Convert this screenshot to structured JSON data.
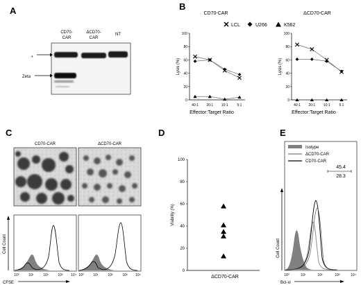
{
  "panels": {
    "A": {
      "letter": "A",
      "lanes": [
        "CD70-\nCAR",
        "ΔCD70-\nCAR",
        "NT"
      ],
      "lane_lines": [
        [
          "CD70-",
          "CAR"
        ],
        [
          "ΔCD70-",
          "CAR"
        ],
        [
          "NT"
        ]
      ],
      "star_label": "*",
      "zeta_label": "Zeta"
    },
    "B": {
      "letter": "B",
      "legend": [
        {
          "symbol": "x",
          "label": "LCL"
        },
        {
          "symbol": "diamond",
          "label": "U266"
        },
        {
          "symbol": "triangle",
          "label": "K562"
        }
      ]
    },
    "C": {
      "letter": "C",
      "image_titles": [
        "CD70-CAR",
        "ΔCD70-CAR"
      ],
      "ylabel": "Cell Count",
      "xlabel": "CFSE",
      "ticks": [
        "10⁰",
        "10¹",
        "10²",
        "10³",
        "10⁴"
      ]
    },
    "D": {
      "letter": "D"
    },
    "E": {
      "letter": "E",
      "legend": [
        "Isotype",
        "ΔCD70-CAR",
        "CD70-CAR"
      ],
      "mfi_values": [
        "45.4",
        "28.3"
      ],
      "ylabel": "Cell Count",
      "xlabel": "Bcl-xl",
      "ticks": [
        "10⁰",
        "10¹",
        "10²",
        "10³",
        "10⁴"
      ]
    }
  },
  "chart_data": [
    {
      "type": "line",
      "title": "CD70-CAR",
      "xlabel": "Effector:Target Ratio",
      "ylabel": "Lysis (%)",
      "categories": [
        "40:1",
        "20:1",
        "10:1",
        "5:1"
      ],
      "ylim": [
        0,
        100
      ],
      "yticks": [
        0,
        20,
        40,
        60,
        80,
        100
      ],
      "series": [
        {
          "name": "LCL",
          "marker": "x",
          "values": [
            65,
            60,
            44,
            33
          ]
        },
        {
          "name": "U266",
          "marker": "diamond",
          "values": [
            58,
            60,
            46,
            38
          ]
        },
        {
          "name": "K562",
          "marker": "triangle",
          "values": [
            5,
            5,
            1,
            4
          ]
        }
      ]
    },
    {
      "type": "line",
      "title": "ΔCD70-CAR",
      "xlabel": "Effector:Target Ratio",
      "ylabel": "Lysis (%)",
      "categories": [
        "40:1",
        "20:1",
        "10:1",
        "5:1"
      ],
      "ylim": [
        0,
        100
      ],
      "yticks": [
        0,
        20,
        40,
        60,
        80,
        100
      ],
      "series": [
        {
          "name": "LCL",
          "marker": "x",
          "values": [
            83,
            76,
            60,
            42
          ]
        },
        {
          "name": "U266",
          "marker": "diamond",
          "values": [
            61,
            61,
            58,
            43
          ]
        },
        {
          "name": "K562",
          "marker": "triangle",
          "values": [
            0,
            0,
            0,
            0
          ]
        }
      ]
    },
    {
      "type": "scatter",
      "title": "",
      "xlabel": "ΔCD70-CAR",
      "ylabel": "Viability (%)",
      "ylim": [
        0,
        100
      ],
      "yticks": [
        0,
        20,
        40,
        60,
        80,
        100
      ],
      "series": [
        {
          "name": "",
          "marker": "triangle",
          "values": [
            58,
            41,
            35,
            31,
            13
          ]
        }
      ]
    }
  ]
}
